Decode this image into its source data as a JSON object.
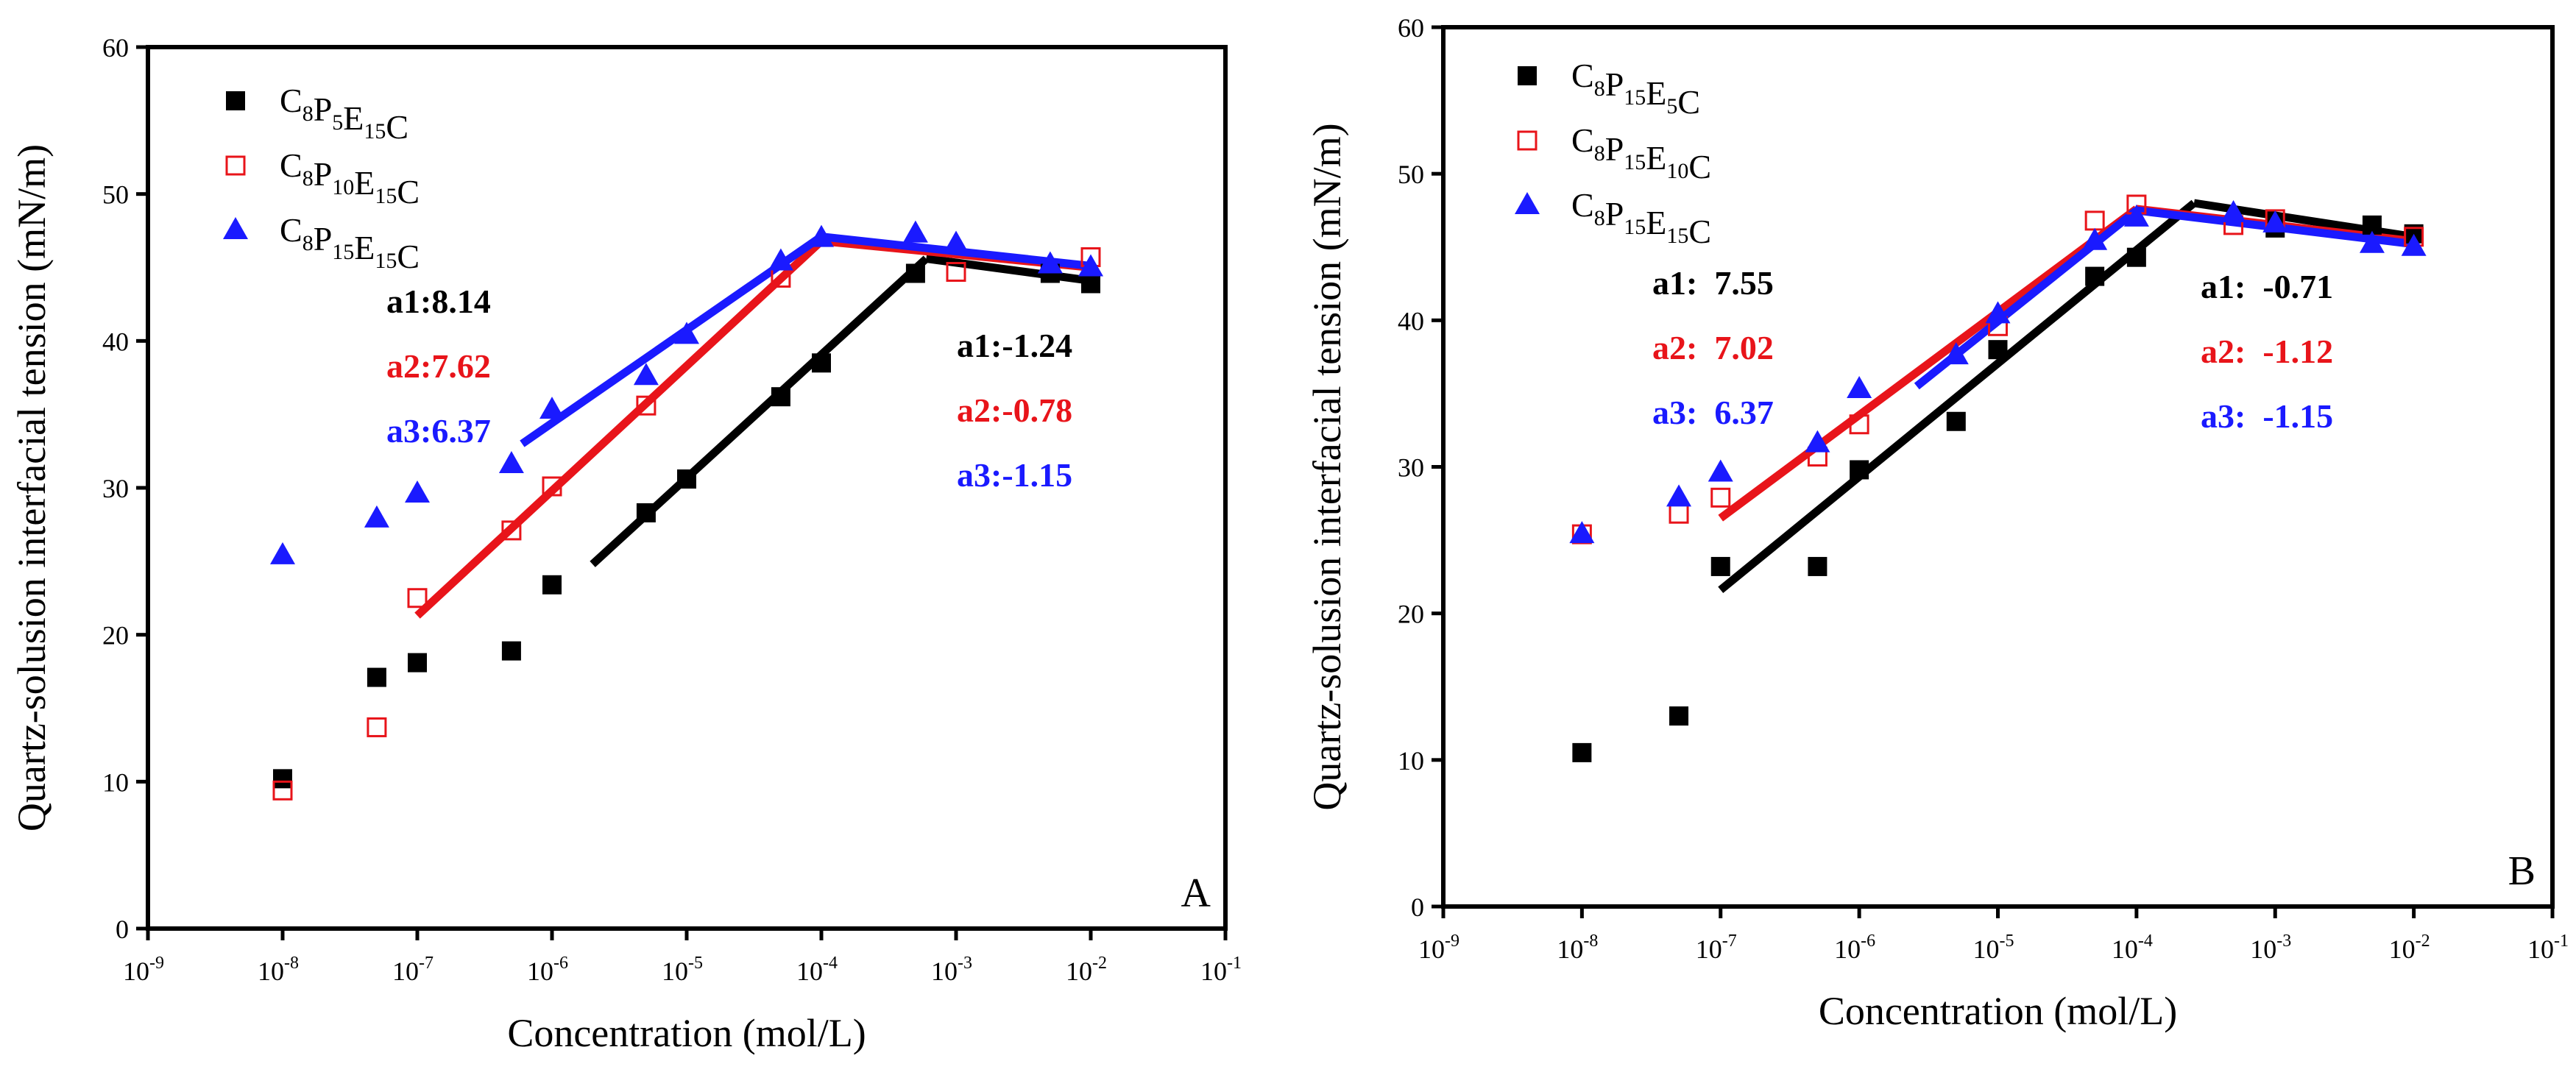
{
  "chart_data": [
    {
      "type": "scatter",
      "panel_label": "A",
      "xlabel": "Concentration (mol/L)",
      "ylabel": "Quartz-solusion interfacial tension (mN/m)",
      "xscale": "log",
      "xlim": [
        1e-09,
        0.1
      ],
      "ylim": [
        0,
        60
      ],
      "xticks": [
        {
          "base": "10",
          "exp": "-9",
          "value": 1e-09
        },
        {
          "base": "10",
          "exp": "-8",
          "value": 1e-08
        },
        {
          "base": "10",
          "exp": "-7",
          "value": 1e-07
        },
        {
          "base": "10",
          "exp": "-6",
          "value": 1e-06
        },
        {
          "base": "10",
          "exp": "-5",
          "value": 1e-05
        },
        {
          "base": "10",
          "exp": "-4",
          "value": 0.0001
        },
        {
          "base": "10",
          "exp": "-3",
          "value": 0.001
        },
        {
          "base": "10",
          "exp": "-2",
          "value": 0.01
        },
        {
          "base": "10",
          "exp": "-1",
          "value": 0.1
        }
      ],
      "yticks": [
        "0",
        "10",
        "20",
        "30",
        "40",
        "50",
        "60"
      ],
      "legend_position": "top-left",
      "series": [
        {
          "name": "C8P5E15C",
          "name_parts": [
            {
              "t": "C",
              "s": "8"
            },
            {
              "t": "P",
              "s": "5"
            },
            {
              "t": "E",
              "s": "15"
            },
            {
              "t": "C",
              "s": ""
            }
          ],
          "marker": "square-filled",
          "color": "#000000",
          "x": [
            1e-08,
            5e-08,
            1e-07,
            5e-07,
            1e-06,
            5e-06,
            1e-05,
            5e-05,
            0.0001,
            0.0005,
            0.005,
            0.01
          ],
          "y": [
            10.2,
            17.1,
            18.1,
            18.9,
            23.4,
            28.3,
            30.6,
            36.2,
            38.5,
            44.6,
            44.6,
            43.9
          ],
          "fit_lines": [
            {
              "x": [
                2e-06,
                0.0006
              ],
              "y": [
                24.8,
                45.6
              ]
            },
            {
              "x": [
                0.0006,
                0.01
              ],
              "y": [
                45.6,
                44.1
              ]
            }
          ]
        },
        {
          "name": "C8P10E15C",
          "name_parts": [
            {
              "t": "C",
              "s": "8"
            },
            {
              "t": "P",
              "s": "10"
            },
            {
              "t": "E",
              "s": "15"
            },
            {
              "t": "C",
              "s": ""
            }
          ],
          "marker": "square-open",
          "color": "#e8141a",
          "x": [
            1e-08,
            5e-08,
            1e-07,
            5e-07,
            1e-06,
            5e-06,
            5e-05,
            0.001,
            0.01
          ],
          "y": [
            9.4,
            13.7,
            22.5,
            27.1,
            30.1,
            35.6,
            44.3,
            44.7,
            45.7
          ],
          "fit_lines": [
            {
              "x": [
                1e-07,
                0.0001
              ],
              "y": [
                21.3,
                46.8
              ]
            },
            {
              "x": [
                0.0001,
                0.01
              ],
              "y": [
                46.8,
                45.0
              ]
            }
          ]
        },
        {
          "name": "C8P15E15C",
          "name_parts": [
            {
              "t": "C",
              "s": "8"
            },
            {
              "t": "P",
              "s": "15"
            },
            {
              "t": "E",
              "s": "15"
            },
            {
              "t": "C",
              "s": ""
            }
          ],
          "marker": "triangle-filled",
          "color": "#1a1aff",
          "x": [
            1e-08,
            5e-08,
            1e-07,
            5e-07,
            1e-06,
            5e-06,
            1e-05,
            5e-05,
            0.0001,
            0.0005,
            0.001,
            0.005,
            0.01
          ],
          "y": [
            25.4,
            27.9,
            29.6,
            31.6,
            35.3,
            37.6,
            40.4,
            45.4,
            47.0,
            47.3,
            46.6,
            45.2,
            45.0
          ],
          "fit_lines": [
            {
              "x": [
                6e-07,
                0.0001
              ],
              "y": [
                33.0,
                47.1
              ]
            },
            {
              "x": [
                0.0001,
                0.01
              ],
              "y": [
                47.1,
                45.1
              ]
            }
          ]
        }
      ],
      "annotations": [
        {
          "text": "a1:8.14",
          "color": "#000000"
        },
        {
          "text": "a2:7.62",
          "color": "#e8141a"
        },
        {
          "text": "a3:6.37",
          "color": "#1a1aff"
        },
        {
          "text": "a1:-1.24",
          "color": "#000000"
        },
        {
          "text": "a2:-0.78",
          "color": "#e8141a"
        },
        {
          "text": "a3:-1.15",
          "color": "#1a1aff"
        }
      ]
    },
    {
      "type": "scatter",
      "panel_label": "B",
      "xlabel": "Concentration (mol/L)",
      "ylabel": "Quartz-solusion interfacial tension (mN/m)",
      "xscale": "log",
      "xlim": [
        1e-09,
        0.1
      ],
      "ylim": [
        0,
        60
      ],
      "xticks": [
        {
          "base": "10",
          "exp": "-9",
          "value": 1e-09
        },
        {
          "base": "10",
          "exp": "-8",
          "value": 1e-08
        },
        {
          "base": "10",
          "exp": "-7",
          "value": 1e-07
        },
        {
          "base": "10",
          "exp": "-6",
          "value": 1e-06
        },
        {
          "base": "10",
          "exp": "-5",
          "value": 1e-05
        },
        {
          "base": "10",
          "exp": "-4",
          "value": 0.0001
        },
        {
          "base": "10",
          "exp": "-3",
          "value": 0.001
        },
        {
          "base": "10",
          "exp": "-2",
          "value": 0.01
        },
        {
          "base": "10",
          "exp": "-1",
          "value": 0.1
        }
      ],
      "yticks": [
        "0",
        "10",
        "20",
        "30",
        "40",
        "50",
        "60"
      ],
      "legend_position": "top-left",
      "series": [
        {
          "name": "C8P15E5C",
          "name_parts": [
            {
              "t": "C",
              "s": "8"
            },
            {
              "t": "P",
              "s": "15"
            },
            {
              "t": "E",
              "s": "5"
            },
            {
              "t": "C",
              "s": ""
            }
          ],
          "marker": "square-filled",
          "color": "#000000",
          "x": [
            1e-08,
            5e-08,
            1e-07,
            5e-07,
            1e-06,
            5e-06,
            1e-05,
            5e-05,
            0.0001,
            0.001,
            0.005,
            0.01
          ],
          "y": [
            10.5,
            13.0,
            23.2,
            23.2,
            29.8,
            33.1,
            38.0,
            43.0,
            44.3,
            46.3,
            46.5,
            45.9
          ],
          "fit_lines": [
            {
              "x": [
                1e-07,
                0.00026
              ],
              "y": [
                21.6,
                48.0
              ]
            },
            {
              "x": [
                0.00026,
                0.01
              ],
              "y": [
                48.0,
                45.7
              ]
            }
          ]
        },
        {
          "name": "C8P15E10C",
          "name_parts": [
            {
              "t": "C",
              "s": "8"
            },
            {
              "t": "P",
              "s": "15"
            },
            {
              "t": "E",
              "s": "10"
            },
            {
              "t": "C",
              "s": ""
            }
          ],
          "marker": "square-open",
          "color": "#e8141a",
          "x": [
            1e-08,
            5e-08,
            1e-07,
            5e-07,
            1e-06,
            1e-05,
            5e-05,
            0.0001,
            0.0005,
            0.001,
            0.01
          ],
          "y": [
            25.4,
            26.8,
            27.9,
            30.7,
            32.9,
            39.6,
            46.8,
            47.9,
            46.5,
            46.9,
            45.7
          ],
          "fit_lines": [
            {
              "x": [
                1e-07,
                0.0001
              ],
              "y": [
                26.5,
                47.6
              ]
            },
            {
              "x": [
                0.0001,
                0.01
              ],
              "y": [
                47.6,
                45.4
              ]
            }
          ]
        },
        {
          "name": "C8P15E15C",
          "name_parts": [
            {
              "t": "C",
              "s": "8"
            },
            {
              "t": "P",
              "s": "15"
            },
            {
              "t": "E",
              "s": "15"
            },
            {
              "t": "C",
              "s": ""
            }
          ],
          "marker": "triangle-filled",
          "color": "#1a1aff",
          "x": [
            1e-08,
            5e-08,
            1e-07,
            5e-07,
            1e-06,
            5e-06,
            1e-05,
            5e-05,
            0.0001,
            0.0005,
            0.001,
            0.005,
            0.01
          ],
          "y": [
            25.4,
            27.9,
            29.6,
            31.6,
            35.3,
            37.6,
            40.4,
            45.4,
            47.0,
            47.3,
            46.6,
            45.2,
            45.0
          ],
          "fit_lines": [
            {
              "x": [
                2.6e-06,
                0.0001
              ],
              "y": [
                35.5,
                47.5
              ]
            },
            {
              "x": [
                0.0001,
                0.01
              ],
              "y": [
                47.5,
                45.2
              ]
            }
          ]
        }
      ],
      "annotations": [
        {
          "text": "a1:  7.55",
          "color": "#000000"
        },
        {
          "text": "a2:  7.02",
          "color": "#e8141a"
        },
        {
          "text": "a3:  6.37",
          "color": "#1a1aff"
        },
        {
          "text": "a1:  -0.71",
          "color": "#000000"
        },
        {
          "text": "a2:  -1.12",
          "color": "#e8141a"
        },
        {
          "text": "a3:  -1.15",
          "color": "#1a1aff"
        }
      ]
    }
  ]
}
